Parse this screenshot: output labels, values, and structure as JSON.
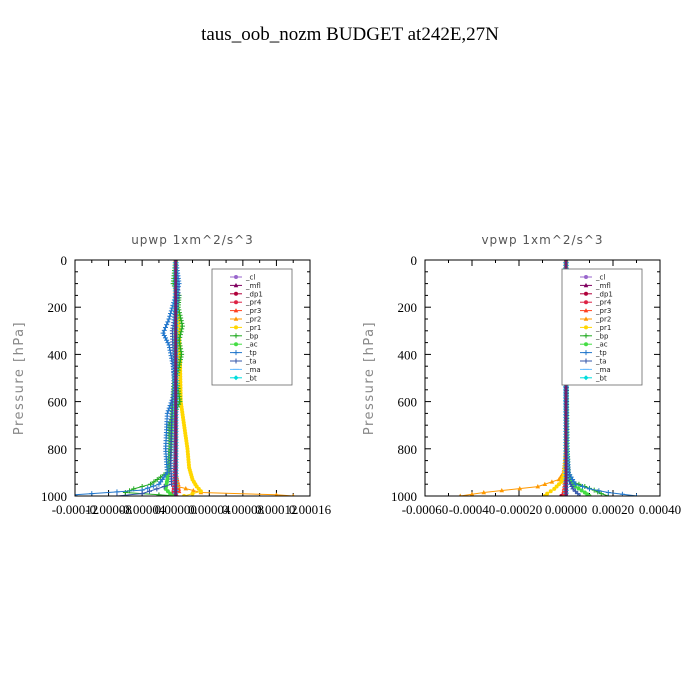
{
  "title": "taus_oob_nozm  BUDGET at242E,27N",
  "legend_labels": [
    "_cl",
    "_mfl",
    "_dp1",
    "_pr4",
    "_pr3",
    "_pr2",
    "_pr1",
    "_bp",
    "_ac",
    "_tp",
    "_ta",
    "_ma",
    "_bt"
  ],
  "colors": {
    "_cl": "#9966cc",
    "_mfl": "#800060",
    "_dp1": "#b0003a",
    "_pr4": "#dd2244",
    "_pr3": "#ff4020",
    "_pr2": "#ff9900",
    "_pr1": "#ffd700",
    "_bp": "#22aa22",
    "_ac": "#44dd44",
    "_tp": "#2277cc",
    "_ta": "#3355aa",
    "_ma": "#66bbff",
    "_bt": "#00dddd"
  },
  "chart_data": [
    {
      "type": "line",
      "title": "upwp   1xm^2/s^3",
      "ylabel": "Pressure [hPa]",
      "ylim": [
        1000,
        0
      ],
      "xlim": [
        -0.00012,
        0.00016
      ],
      "yticks": [
        0,
        200,
        400,
        600,
        800,
        1000
      ],
      "xtick_labels": [
        "-0.00012",
        "-0.00008",
        "-0.00004",
        "0.00000",
        "0.00004",
        "0.00008",
        "0.00012",
        "0.00016"
      ],
      "xtick_values": [
        -0.00012,
        -8e-05,
        -4e-05,
        0.0,
        4e-05,
        8e-05,
        0.00012,
        0.00016
      ],
      "legend_position": "top-right",
      "series": [
        {
          "name": "_cl",
          "points": [
            [
              0,
              0
            ],
            [
              0,
              200
            ],
            [
              0,
              400
            ],
            [
              0,
              600
            ],
            [
              0,
              800
            ],
            [
              0,
              950
            ],
            [
              0,
              1000
            ]
          ]
        },
        {
          "name": "_mfl",
          "points": [
            [
              0,
              0
            ],
            [
              0,
              200
            ],
            [
              0,
              400
            ],
            [
              0,
              600
            ],
            [
              0,
              800
            ],
            [
              0,
              950
            ],
            [
              0,
              1000
            ]
          ]
        },
        {
          "name": "_dp1",
          "points": [
            [
              0,
              0
            ],
            [
              0,
              200
            ],
            [
              0,
              400
            ],
            [
              0,
              600
            ],
            [
              0,
              800
            ],
            [
              0,
              960
            ],
            [
              0,
              980
            ],
            [
              -2e-06,
              1000
            ]
          ]
        },
        {
          "name": "_pr4",
          "points": [
            [
              0,
              0
            ],
            [
              0,
              200
            ],
            [
              0,
              400
            ],
            [
              0,
              600
            ],
            [
              0,
              800
            ],
            [
              -2e-06,
              960
            ],
            [
              -3e-06,
              990
            ],
            [
              0,
              1000
            ]
          ]
        },
        {
          "name": "_pr3",
          "points": [
            [
              0,
              0
            ],
            [
              0,
              200
            ],
            [
              0,
              400
            ],
            [
              0,
              700
            ],
            [
              0,
              900
            ],
            [
              3e-06,
              950
            ],
            [
              4e-06,
              980
            ],
            [
              -3e-06,
              1000
            ]
          ]
        },
        {
          "name": "_pr2",
          "points": [
            [
              0,
              0
            ],
            [
              0,
              300
            ],
            [
              0,
              600
            ],
            [
              0,
              900
            ],
            [
              3e-06,
              960
            ],
            [
              3e-05,
              985
            ],
            [
              0.00012,
              995
            ],
            [
              0.00014,
              1000
            ]
          ]
        },
        {
          "name": "_pr1",
          "points": [
            [
              0,
              0
            ],
            [
              1e-06,
              150
            ],
            [
              3e-06,
              250
            ],
            [
              5e-06,
              400
            ],
            [
              6e-06,
              600
            ],
            [
              1e-05,
              700
            ],
            [
              1.4e-05,
              800
            ],
            [
              1.6e-05,
              880
            ],
            [
              2e-05,
              930
            ],
            [
              2.5e-05,
              960
            ],
            [
              3e-05,
              980
            ],
            [
              1e-05,
              1000
            ]
          ]
        },
        {
          "name": "_bp",
          "points": [
            [
              0,
              0
            ],
            [
              -3e-06,
              100
            ],
            [
              4e-06,
              150
            ],
            [
              3e-06,
              200
            ],
            [
              8e-06,
              280
            ],
            [
              4e-06,
              340
            ],
            [
              7e-06,
              400
            ],
            [
              1e-06,
              500
            ],
            [
              5e-06,
              600
            ],
            [
              -8e-06,
              700
            ],
            [
              -8e-06,
              800
            ],
            [
              -1e-05,
              900
            ],
            [
              -3e-05,
              950
            ],
            [
              -5e-05,
              970
            ],
            [
              -6e-05,
              985
            ],
            [
              -2e-05,
              995
            ],
            [
              0,
              1000
            ]
          ]
        },
        {
          "name": "_ac",
          "points": [
            [
              0,
              0
            ],
            [
              0,
              400
            ],
            [
              -5e-06,
              700
            ],
            [
              -7e-06,
              850
            ],
            [
              -1e-05,
              930
            ],
            [
              -1.2e-05,
              970
            ],
            [
              -4e-06,
              1000
            ]
          ]
        },
        {
          "name": "_tp",
          "points": [
            [
              0,
              0
            ],
            [
              4e-06,
              100
            ],
            [
              -8e-06,
              250
            ],
            [
              -1.5e-05,
              310
            ],
            [
              -8e-06,
              360
            ],
            [
              -3e-06,
              450
            ],
            [
              0,
              550
            ],
            [
              -1e-05,
              650
            ],
            [
              -1.2e-05,
              800
            ],
            [
              -1e-05,
              900
            ],
            [
              -2e-05,
              950
            ],
            [
              -4e-05,
              975
            ],
            [
              -0.0001,
              990
            ],
            [
              -0.00012,
              995
            ],
            [
              -0.00012,
              1000
            ]
          ]
        },
        {
          "name": "_ta",
          "points": [
            [
              0,
              0
            ],
            [
              3e-06,
              150
            ],
            [
              -4e-06,
              300
            ],
            [
              -2e-06,
              500
            ],
            [
              -5e-06,
              700
            ],
            [
              -6e-06,
              850
            ],
            [
              -5e-06,
              950
            ],
            [
              -4e-05,
              990
            ],
            [
              -7e-05,
              1000
            ]
          ]
        },
        {
          "name": "_ma",
          "points": [
            [
              0,
              0
            ],
            [
              0,
              1000
            ]
          ]
        },
        {
          "name": "_bt",
          "points": [
            [
              0,
              0
            ],
            [
              0,
              1000
            ]
          ]
        }
      ]
    },
    {
      "type": "line",
      "title": "vpwp   1xm^2/s^3",
      "ylabel": "Pressure [hPa]",
      "ylim": [
        1000,
        0
      ],
      "xlim": [
        -0.0006,
        0.0004
      ],
      "yticks": [
        0,
        200,
        400,
        600,
        800,
        1000
      ],
      "xtick_labels": [
        "-0.00060",
        "-0.00040",
        "-0.00020",
        "0.00000",
        "0.00020",
        "0.00040"
      ],
      "xtick_values": [
        -0.0006,
        -0.0004,
        -0.0002,
        0.0,
        0.0002,
        0.0004
      ],
      "legend_position": "top-right",
      "series": [
        {
          "name": "_cl",
          "points": [
            [
              0,
              0
            ],
            [
              0,
              400
            ],
            [
              0,
              800
            ],
            [
              0,
              1000
            ]
          ]
        },
        {
          "name": "_mfl",
          "points": [
            [
              0,
              0
            ],
            [
              0,
              400
            ],
            [
              0,
              800
            ],
            [
              0,
              1000
            ]
          ]
        },
        {
          "name": "_dp1",
          "points": [
            [
              0,
              0
            ],
            [
              0,
              400
            ],
            [
              0,
              800
            ],
            [
              0,
              950
            ],
            [
              -1e-05,
              990
            ],
            [
              -2e-05,
              1000
            ]
          ]
        },
        {
          "name": "_pr4",
          "points": [
            [
              0,
              0
            ],
            [
              0,
              400
            ],
            [
              0,
              800
            ],
            [
              0,
              950
            ],
            [
              -1e-05,
              995
            ],
            [
              0,
              1000
            ]
          ]
        },
        {
          "name": "_pr3",
          "points": [
            [
              0,
              0
            ],
            [
              0,
              400
            ],
            [
              0,
              900
            ],
            [
              -1e-05,
              980
            ],
            [
              0,
              1000
            ]
          ]
        },
        {
          "name": "_pr2",
          "points": [
            [
              0,
              0
            ],
            [
              0,
              400
            ],
            [
              0,
              800
            ],
            [
              -1e-05,
              900
            ],
            [
              -3e-05,
              930
            ],
            [
              -0.00012,
              960
            ],
            [
              -0.00035,
              985
            ],
            [
              -0.00045,
              1000
            ]
          ]
        },
        {
          "name": "_pr1",
          "points": [
            [
              0,
              0
            ],
            [
              0,
              400
            ],
            [
              0,
              800
            ],
            [
              -5e-06,
              900
            ],
            [
              -2e-05,
              940
            ],
            [
              -5e-05,
              970
            ],
            [
              -8e-05,
              990
            ],
            [
              -9e-05,
              1000
            ]
          ]
        },
        {
          "name": "_bp",
          "points": [
            [
              0,
              0
            ],
            [
              0,
              400
            ],
            [
              5e-06,
              800
            ],
            [
              1e-05,
              900
            ],
            [
              3e-05,
              940
            ],
            [
              8e-05,
              960
            ],
            [
              0.00012,
              975
            ],
            [
              0.00015,
              990
            ],
            [
              0.00018,
              1000
            ]
          ]
        },
        {
          "name": "_ac",
          "points": [
            [
              0,
              0
            ],
            [
              0,
              400
            ],
            [
              5e-06,
              800
            ],
            [
              1e-05,
              920
            ],
            [
              4e-05,
              960
            ],
            [
              8e-05,
              985
            ],
            [
              0.0001,
              1000
            ]
          ]
        },
        {
          "name": "_tp",
          "points": [
            [
              0,
              0
            ],
            [
              -5e-06,
              170
            ],
            [
              0,
              300
            ],
            [
              0,
              600
            ],
            [
              5e-06,
              800
            ],
            [
              1e-05,
              900
            ],
            [
              4e-05,
              950
            ],
            [
              0.0001,
              970
            ],
            [
              0.00018,
              985
            ],
            [
              0.0003,
              1000
            ]
          ]
        },
        {
          "name": "_ta",
          "points": [
            [
              0,
              0
            ],
            [
              0,
              400
            ],
            [
              3e-06,
              800
            ],
            [
              1e-05,
              930
            ],
            [
              3e-05,
              970
            ],
            [
              5e-05,
              990
            ],
            [
              6e-05,
              1000
            ]
          ]
        },
        {
          "name": "_ma",
          "points": [
            [
              0,
              0
            ],
            [
              0,
              1000
            ]
          ]
        },
        {
          "name": "_bt",
          "points": [
            [
              0,
              0
            ],
            [
              0,
              1000
            ]
          ]
        }
      ]
    }
  ]
}
